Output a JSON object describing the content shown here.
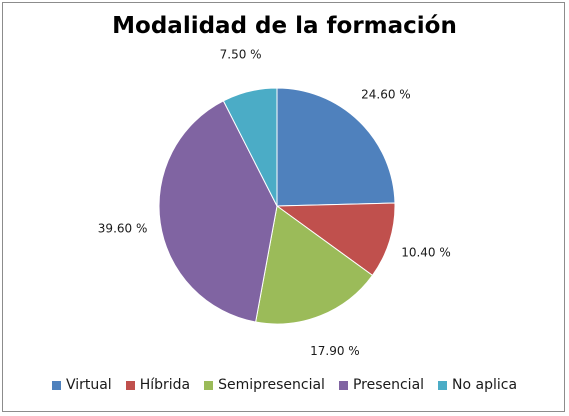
{
  "chart_data": {
    "type": "pie",
    "title": "Modalidad de la formación",
    "legend_position": "bottom",
    "slices": [
      {
        "label": "Virtual",
        "value": 24.6,
        "display": "24.60 %",
        "color": "#4f81bd"
      },
      {
        "label": "Híbrida",
        "value": 10.4,
        "display": "10.40 %",
        "color": "#c0504d"
      },
      {
        "label": "Semipresencial",
        "value": 17.9,
        "display": "17.90 %",
        "color": "#9bbb59"
      },
      {
        "label": "Presencial",
        "value": 39.6,
        "display": "39.60 %",
        "color": "#8064a2"
      },
      {
        "label": "No aplica",
        "value": 7.5,
        "display": "7.50 %",
        "color": "#4bacc6"
      }
    ]
  }
}
